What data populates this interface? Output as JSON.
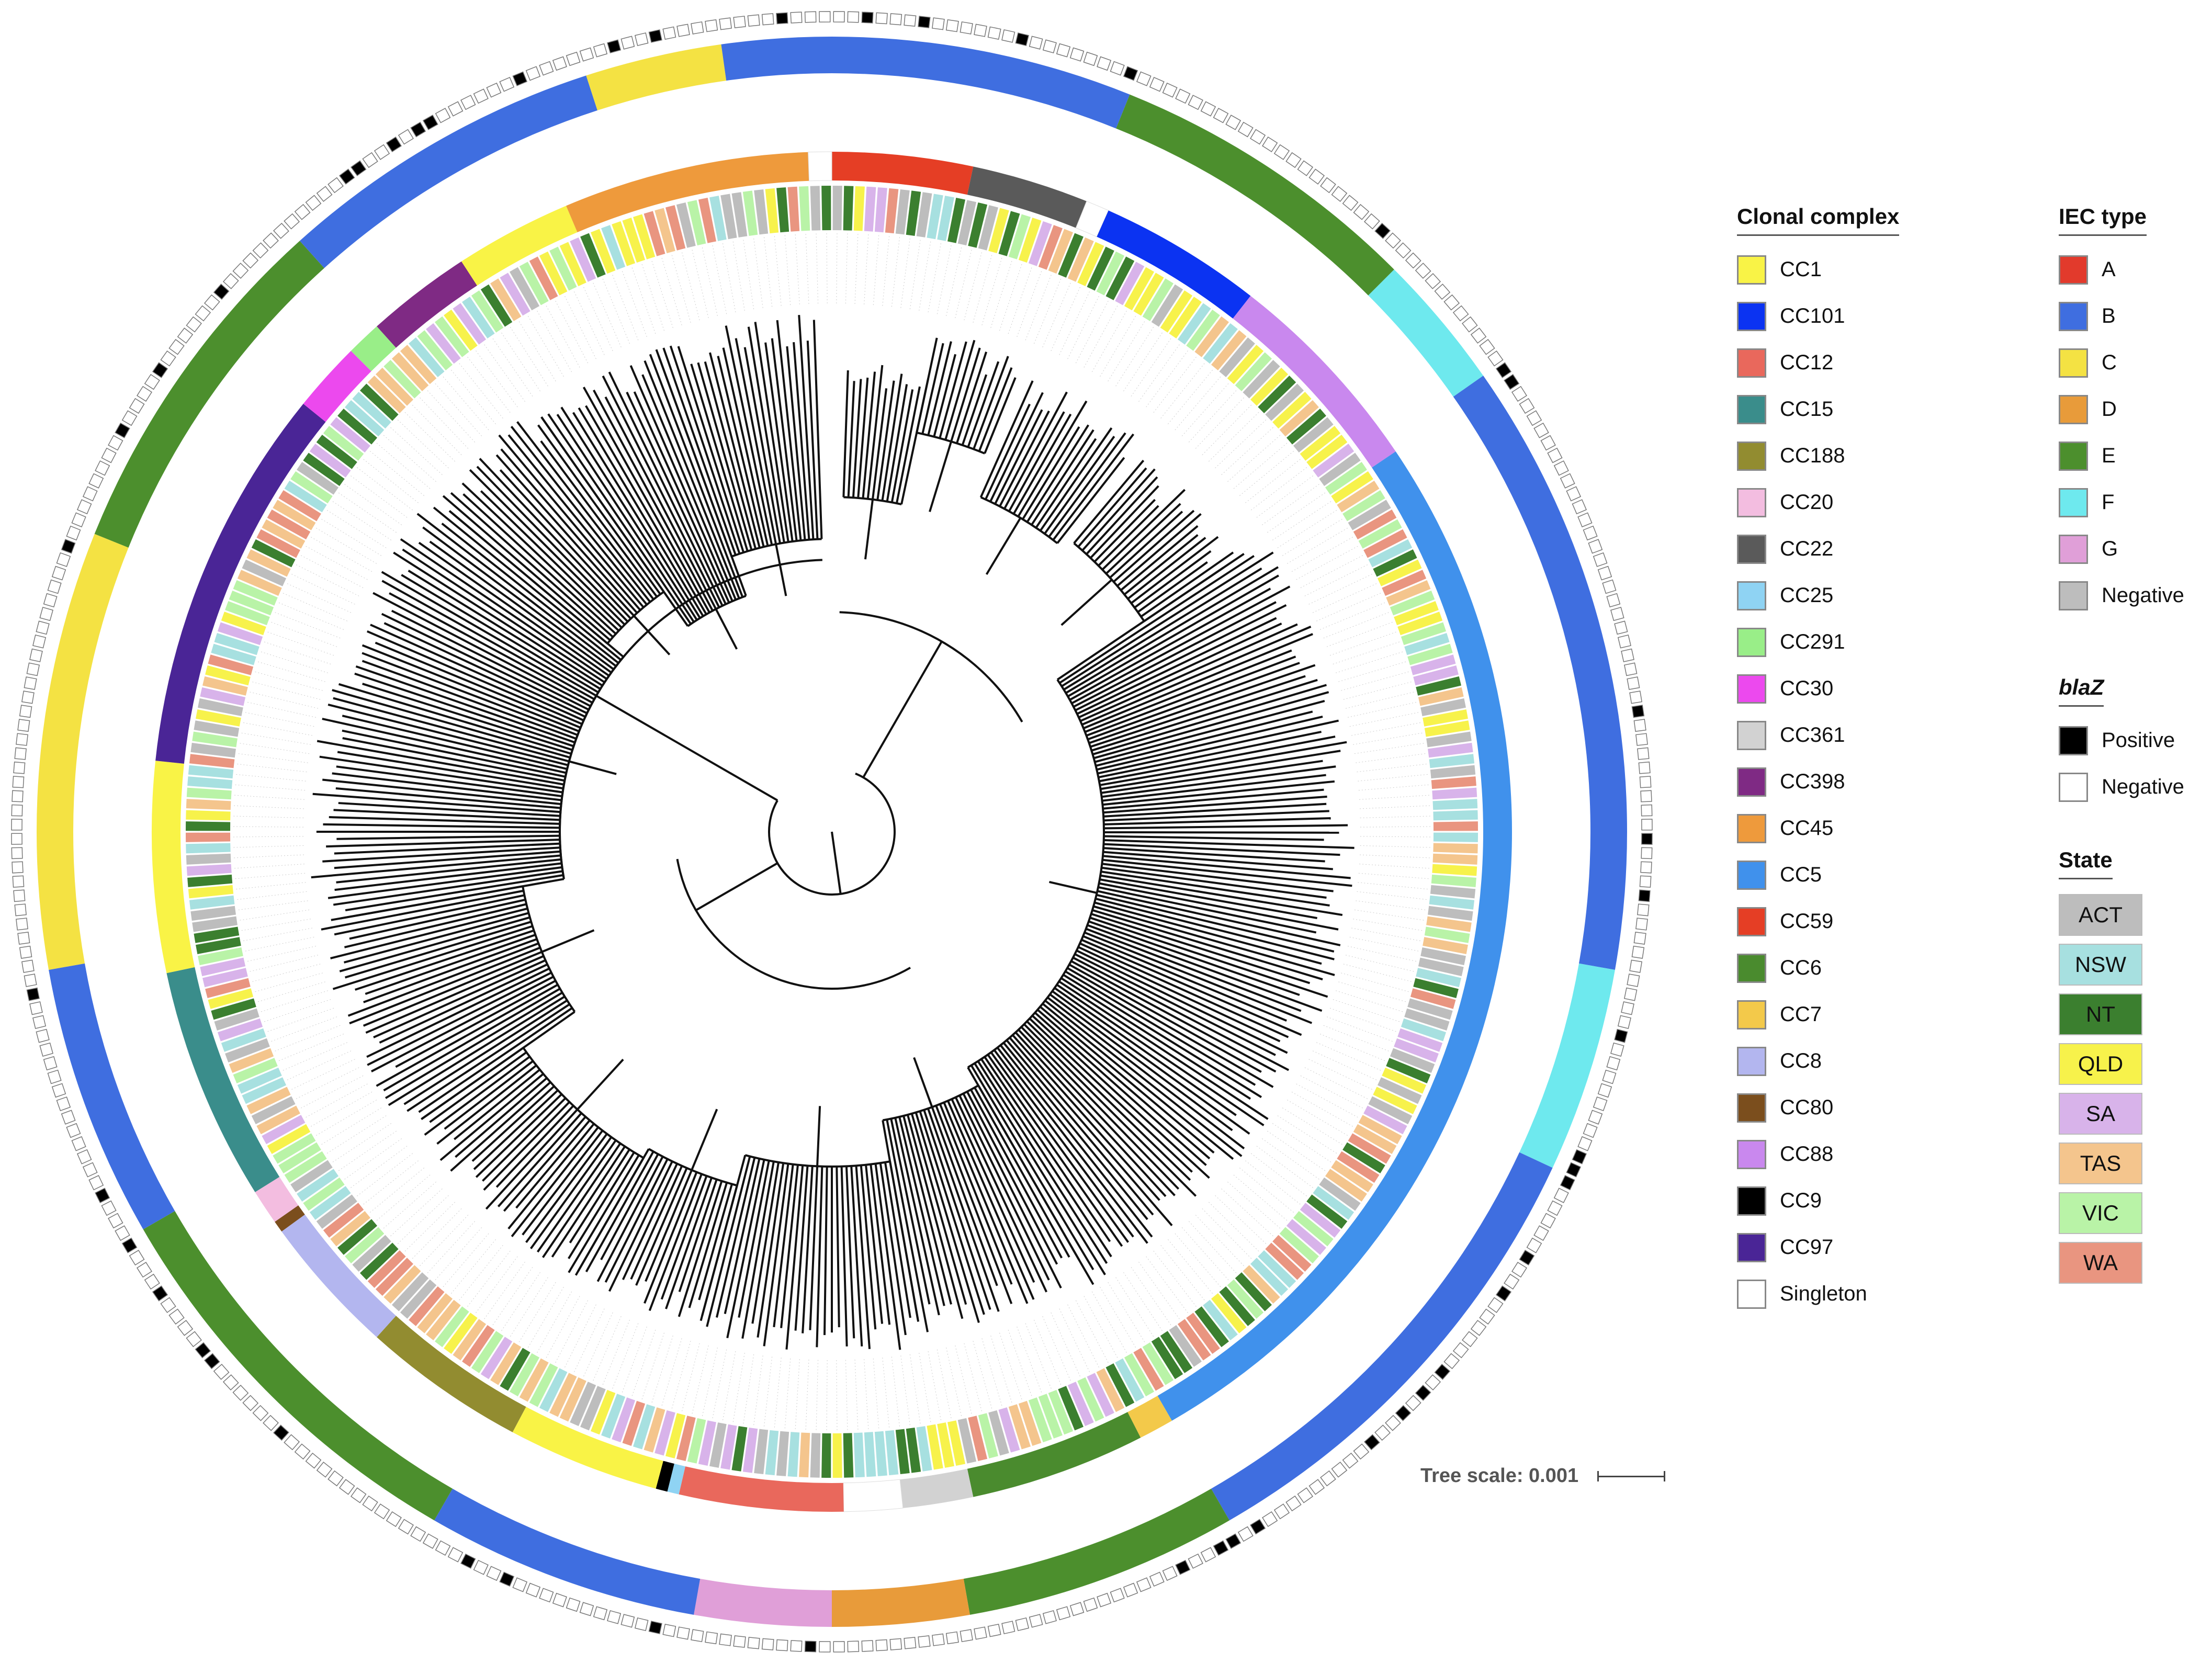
{
  "colors": {
    "clonal": {
      "CC1": "#f9f346",
      "CC101": "#0b33f2",
      "CC12": "#e9685c",
      "CC15": "#3a8d8b",
      "CC188": "#928c30",
      "CC20": "#f3bde0",
      "CC22": "#5a5a5a",
      "CC25": "#8fd3f3",
      "CC291": "#99ee88",
      "CC30": "#ec49ee",
      "CC361": "#d2d2d2",
      "CC398": "#7f2a84",
      "CC45": "#ee9a3c",
      "CC5": "#4091ec",
      "CC59": "#e53e25",
      "CC6": "#4a8b2e",
      "CC7": "#f3c94a",
      "CC8": "#b3b6ef",
      "CC80": "#7b4e1d",
      "CC88": "#c988ee",
      "CC9": "#000000",
      "CC97": "#4a2596",
      "Singleton": "#ffffff"
    },
    "iec": {
      "A": "#e23a2c",
      "B": "#3f6ee0",
      "C": "#f4e243",
      "D": "#e89b3a",
      "E": "#4c8f2d",
      "F": "#6ee9ee",
      "G": "#e09fd8",
      "Negative": "#bdbdbd"
    },
    "state": {
      "ACT": "#bdbdbd",
      "NSW": "#a7e0e0",
      "NT": "#3b7f2f",
      "QLD": "#f7f24b",
      "SA": "#d8b3ea",
      "TAS": "#f4c58d",
      "VIC": "#b9f3a7",
      "WA": "#e99580"
    }
  },
  "clonal_legend": {
    "title": "Clonal complex",
    "items": [
      {
        "label": "CC1",
        "key": "CC1"
      },
      {
        "label": "CC101",
        "key": "CC101"
      },
      {
        "label": "CC12",
        "key": "CC12"
      },
      {
        "label": "CC15",
        "key": "CC15"
      },
      {
        "label": "CC188",
        "key": "CC188"
      },
      {
        "label": "CC20",
        "key": "CC20"
      },
      {
        "label": "CC22",
        "key": "CC22"
      },
      {
        "label": "CC25",
        "key": "CC25"
      },
      {
        "label": "CC291",
        "key": "CC291"
      },
      {
        "label": "CC30",
        "key": "CC30"
      },
      {
        "label": "CC361",
        "key": "CC361"
      },
      {
        "label": "CC398",
        "key": "CC398"
      },
      {
        "label": "CC45",
        "key": "CC45"
      },
      {
        "label": "CC5",
        "key": "CC5"
      },
      {
        "label": "CC59",
        "key": "CC59"
      },
      {
        "label": "CC6",
        "key": "CC6"
      },
      {
        "label": "CC7",
        "key": "CC7"
      },
      {
        "label": "CC8",
        "key": "CC8"
      },
      {
        "label": "CC80",
        "key": "CC80"
      },
      {
        "label": "CC88",
        "key": "CC88"
      },
      {
        "label": "CC9",
        "key": "CC9"
      },
      {
        "label": "CC97",
        "key": "CC97"
      },
      {
        "label": "Singleton",
        "key": "Singleton"
      }
    ]
  },
  "iec_legend": {
    "title": "IEC type",
    "items": [
      {
        "label": "A",
        "key": "A"
      },
      {
        "label": "B",
        "key": "B"
      },
      {
        "label": "C",
        "key": "C"
      },
      {
        "label": "D",
        "key": "D"
      },
      {
        "label": "E",
        "key": "E"
      },
      {
        "label": "F",
        "key": "F"
      },
      {
        "label": "G",
        "key": "G"
      },
      {
        "label": "Negative",
        "key": "Negative"
      }
    ]
  },
  "blaz_legend": {
    "title": "blaZ",
    "items": [
      {
        "label": "Positive",
        "color": "#000000"
      },
      {
        "label": "Negative",
        "color": "#ffffff"
      }
    ]
  },
  "state_legend": {
    "title": "State",
    "items": [
      {
        "label": "ACT",
        "key": "ACT"
      },
      {
        "label": "NSW",
        "key": "NSW"
      },
      {
        "label": "NT",
        "key": "NT"
      },
      {
        "label": "QLD",
        "key": "QLD"
      },
      {
        "label": "SA",
        "key": "SA"
      },
      {
        "label": "TAS",
        "key": "TAS"
      },
      {
        "label": "VIC",
        "key": "VIC"
      },
      {
        "label": "WA",
        "key": "WA"
      }
    ]
  },
  "tree_scale": {
    "label": "Tree scale: 0.001"
  },
  "tree": {
    "cc_segments": [
      {
        "cc": "CC59",
        "start": 0,
        "end": 12
      },
      {
        "cc": "CC22",
        "start": 12,
        "end": 22
      },
      {
        "cc": "Singleton",
        "start": 22,
        "end": 24
      },
      {
        "cc": "CC101",
        "start": 24,
        "end": 38
      },
      {
        "cc": "CC88",
        "start": 38,
        "end": 56
      },
      {
        "cc": "CC5",
        "start": 56,
        "end": 150
      },
      {
        "cc": "CC7",
        "start": 150,
        "end": 153
      },
      {
        "cc": "CC6",
        "start": 153,
        "end": 168
      },
      {
        "cc": "CC361",
        "start": 168,
        "end": 174
      },
      {
        "cc": "Singleton",
        "start": 174,
        "end": 179
      },
      {
        "cc": "CC12",
        "start": 179,
        "end": 193
      },
      {
        "cc": "CC25",
        "start": 193,
        "end": 194
      },
      {
        "cc": "CC9",
        "start": 194,
        "end": 195
      },
      {
        "cc": "CC1",
        "start": 195,
        "end": 208
      },
      {
        "cc": "CC188",
        "start": 208,
        "end": 222
      },
      {
        "cc": "CC8",
        "start": 222,
        "end": 234
      },
      {
        "cc": "CC80",
        "start": 234,
        "end": 235
      },
      {
        "cc": "CC20",
        "start": 235,
        "end": 238
      },
      {
        "cc": "CC15",
        "start": 238,
        "end": 258
      },
      {
        "cc": "CC1",
        "start": 258,
        "end": 276
      },
      {
        "cc": "CC97",
        "start": 276,
        "end": 309
      },
      {
        "cc": "CC30",
        "start": 309,
        "end": 315
      },
      {
        "cc": "CC291",
        "start": 315,
        "end": 318
      },
      {
        "cc": "CC398",
        "start": 318,
        "end": 327
      },
      {
        "cc": "CC1",
        "start": 327,
        "end": 337
      },
      {
        "cc": "CC45",
        "start": 337,
        "end": 358
      },
      {
        "cc": "Singleton",
        "start": 358,
        "end": 360
      }
    ],
    "iec_segments": [
      {
        "iec": "B",
        "start": 0,
        "end": 22
      },
      {
        "iec": "E",
        "start": 22,
        "end": 45
      },
      {
        "iec": "F",
        "start": 45,
        "end": 55
      },
      {
        "iec": "B",
        "start": 55,
        "end": 100
      },
      {
        "iec": "F",
        "start": 100,
        "end": 115
      },
      {
        "iec": "B",
        "start": 115,
        "end": 150
      },
      {
        "iec": "E",
        "start": 150,
        "end": 170
      },
      {
        "iec": "D",
        "start": 170,
        "end": 180
      },
      {
        "iec": "G",
        "start": 180,
        "end": 190
      },
      {
        "iec": "B",
        "start": 190,
        "end": 210
      },
      {
        "iec": "E",
        "start": 210,
        "end": 240
      },
      {
        "iec": "B",
        "start": 240,
        "end": 260
      },
      {
        "iec": "C",
        "start": 260,
        "end": 292
      },
      {
        "iec": "E",
        "start": 292,
        "end": 318
      },
      {
        "iec": "B",
        "start": 318,
        "end": 342
      },
      {
        "iec": "C",
        "start": 342,
        "end": 352
      },
      {
        "iec": "B",
        "start": 352,
        "end": 360
      }
    ]
  }
}
